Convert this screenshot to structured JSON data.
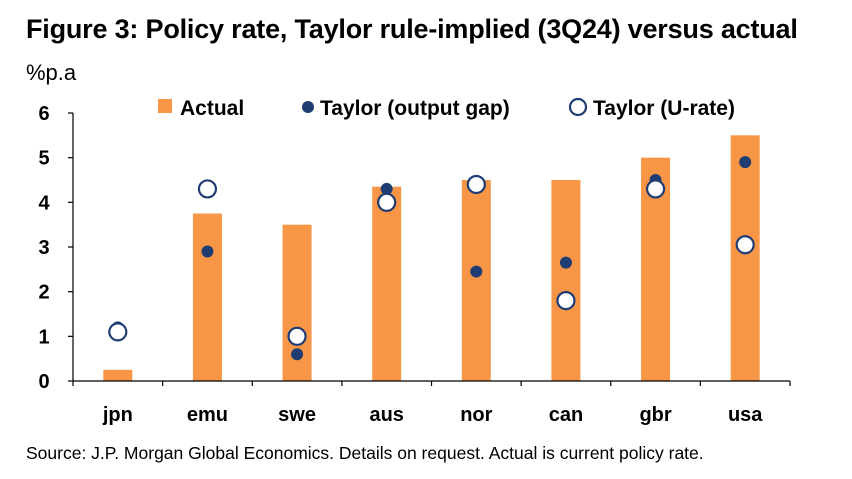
{
  "title": "Figure 3: Policy rate, Taylor rule-implied (3Q24) versus actual",
  "unit_label": "%p.a",
  "source": "Source: J.P. Morgan Global Economics. Details on request. Actual is current policy rate.",
  "colors": {
    "actual": "#F79646",
    "taylor": "#1F3C73"
  },
  "chart_data": {
    "type": "bar",
    "categories": [
      "jpn",
      "emu",
      "swe",
      "aus",
      "nor",
      "can",
      "gbr",
      "usa"
    ],
    "series": [
      {
        "name": "Actual",
        "kind": "bar",
        "values": [
          0.25,
          3.75,
          3.5,
          4.35,
          4.5,
          4.5,
          5.0,
          5.5
        ]
      },
      {
        "name": "Taylor (output gap)",
        "kind": "filled-dot",
        "values": [
          1.2,
          2.9,
          0.6,
          4.3,
          2.45,
          2.65,
          4.5,
          4.9
        ]
      },
      {
        "name": "Taylor (U-rate)",
        "kind": "hollow-dot",
        "values": [
          1.1,
          4.3,
          1.0,
          4.0,
          4.4,
          1.8,
          4.3,
          3.05
        ]
      }
    ],
    "ylim": [
      0,
      6
    ],
    "yticks": [
      0,
      1,
      2,
      3,
      4,
      5,
      6
    ],
    "legend": "top",
    "grid": false
  }
}
